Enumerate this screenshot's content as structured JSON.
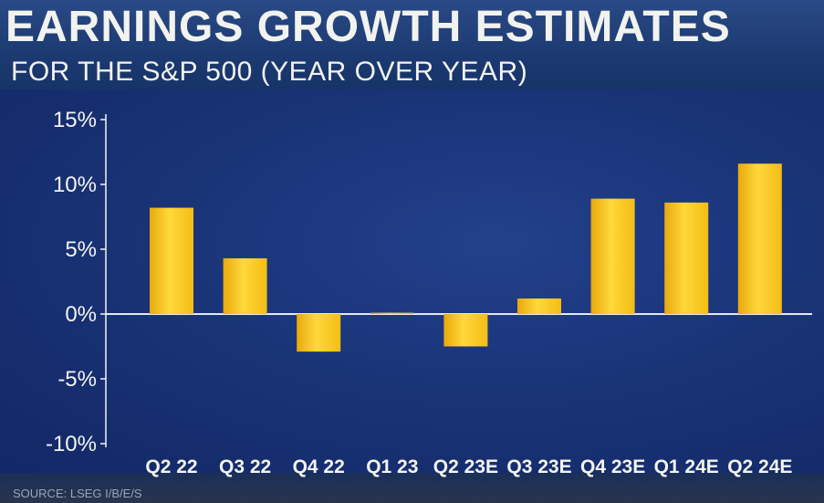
{
  "header": {
    "title": "EARNINGS GROWTH ESTIMATES",
    "subtitle": "FOR THE S&P 500 (YEAR OVER YEAR)"
  },
  "footer": {
    "source": "SOURCE: LSEG I/B/E/S"
  },
  "colors": {
    "bar": "#f5c518",
    "background": "#1a3478",
    "text": "#f4f4f0"
  },
  "chart_data": {
    "type": "bar",
    "title": "EARNINGS GROWTH ESTIMATES",
    "subtitle": "FOR THE S&P 500 (YEAR OVER YEAR)",
    "categories": [
      "Q2 22",
      "Q3 22",
      "Q4 22",
      "Q1 23",
      "Q2 23E",
      "Q3 23E",
      "Q4 23E",
      "Q1 24E",
      "Q2 24E"
    ],
    "values": [
      8.2,
      4.3,
      -2.9,
      0.1,
      -2.5,
      1.2,
      8.9,
      8.6,
      11.6
    ],
    "yticks": [
      "15%",
      "10%",
      "5%",
      "0%",
      "-5%",
      "-10%"
    ],
    "ytick_values": [
      15,
      10,
      5,
      0,
      -5,
      -10
    ],
    "ylim": [
      -10,
      15
    ],
    "grid": false,
    "legend": "none",
    "xlabel": "",
    "ylabel": ""
  }
}
